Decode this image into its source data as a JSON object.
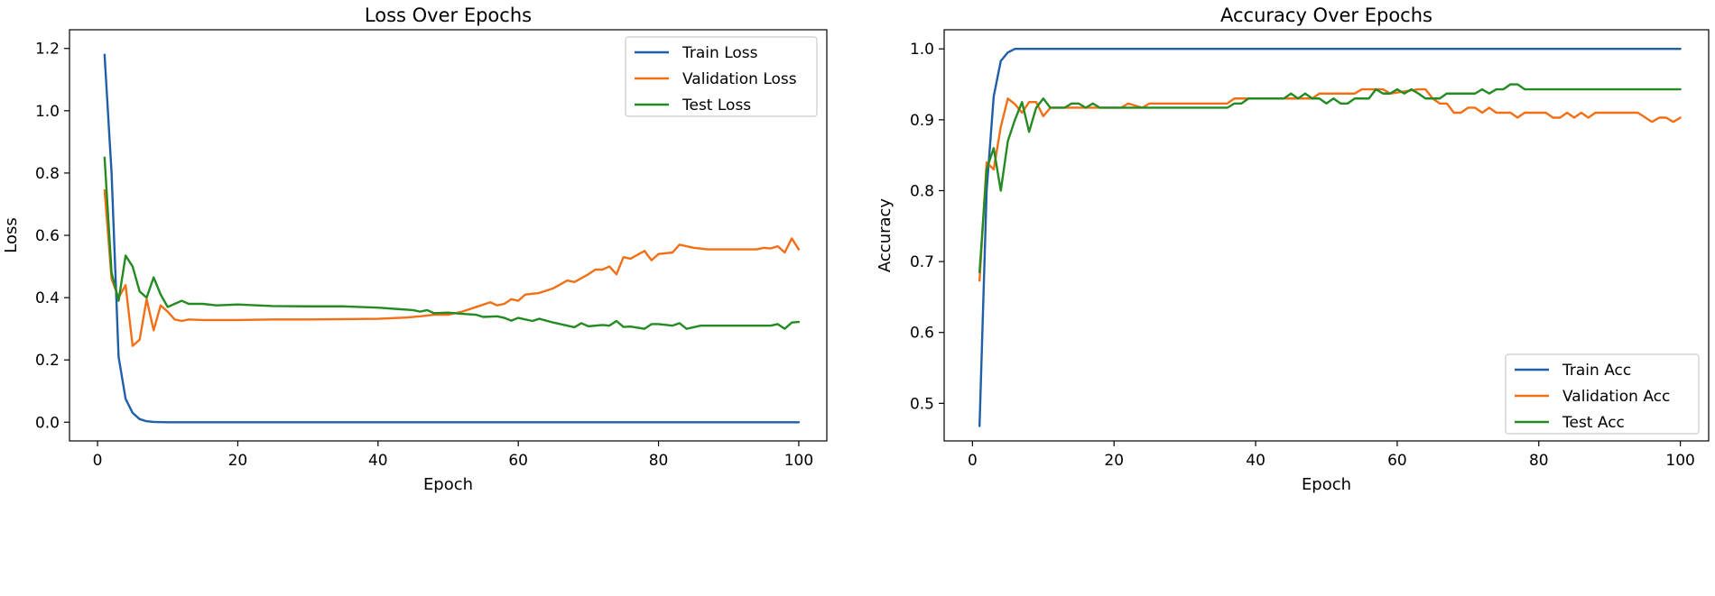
{
  "chart_data": [
    {
      "type": "line",
      "title": "Loss Over Epochs",
      "xlabel": "Epoch",
      "ylabel": "Loss",
      "xlim": [
        -4,
        104
      ],
      "ylim": [
        -0.06,
        1.26
      ],
      "xticks": [
        0,
        20,
        40,
        60,
        80,
        100
      ],
      "xtick_labels": [
        "0",
        "20",
        "40",
        "60",
        "80",
        "100"
      ],
      "yticks": [
        0.0,
        0.2,
        0.4,
        0.6,
        0.8,
        1.0,
        1.2
      ],
      "ytick_labels": [
        "0.0",
        "0.2",
        "0.4",
        "0.6",
        "0.8",
        "1.0",
        "1.2"
      ],
      "grid": false,
      "legend_position": "top-right",
      "series": [
        {
          "name": "Train Loss",
          "color": "#1f5ea8",
          "points": [
            [
              1,
              1.18
            ],
            [
              2,
              0.8
            ],
            [
              3,
              0.21
            ],
            [
              4,
              0.075
            ],
            [
              5,
              0.03
            ],
            [
              6,
              0.01
            ],
            [
              7,
              0.003
            ],
            [
              8,
              0.001
            ],
            [
              10,
              0.0
            ],
            [
              20,
              0.0
            ],
            [
              40,
              0.0
            ],
            [
              60,
              0.0
            ],
            [
              80,
              0.0
            ],
            [
              100,
              0.0
            ]
          ]
        },
        {
          "name": "Validation Loss",
          "color": "#f36f16",
          "points": [
            [
              1,
              0.745
            ],
            [
              2,
              0.46
            ],
            [
              3,
              0.4
            ],
            [
              4,
              0.44
            ],
            [
              5,
              0.245
            ],
            [
              6,
              0.265
            ],
            [
              7,
              0.395
            ],
            [
              8,
              0.295
            ],
            [
              9,
              0.375
            ],
            [
              10,
              0.355
            ],
            [
              11,
              0.33
            ],
            [
              12,
              0.325
            ],
            [
              13,
              0.33
            ],
            [
              15,
              0.328
            ],
            [
              20,
              0.328
            ],
            [
              25,
              0.33
            ],
            [
              30,
              0.33
            ],
            [
              40,
              0.332
            ],
            [
              44,
              0.336
            ],
            [
              46,
              0.34
            ],
            [
              48,
              0.345
            ],
            [
              50,
              0.345
            ],
            [
              52,
              0.355
            ],
            [
              54,
              0.37
            ],
            [
              56,
              0.385
            ],
            [
              57,
              0.375
            ],
            [
              58,
              0.38
            ],
            [
              59,
              0.395
            ],
            [
              60,
              0.39
            ],
            [
              61,
              0.41
            ],
            [
              63,
              0.415
            ],
            [
              65,
              0.43
            ],
            [
              67,
              0.455
            ],
            [
              68,
              0.45
            ],
            [
              70,
              0.475
            ],
            [
              71,
              0.49
            ],
            [
              72,
              0.49
            ],
            [
              73,
              0.5
            ],
            [
              74,
              0.475
            ],
            [
              75,
              0.53
            ],
            [
              76,
              0.525
            ],
            [
              78,
              0.55
            ],
            [
              79,
              0.52
            ],
            [
              80,
              0.54
            ],
            [
              82,
              0.545
            ],
            [
              83,
              0.57
            ],
            [
              85,
              0.56
            ],
            [
              87,
              0.555
            ],
            [
              88,
              0.555
            ],
            [
              90,
              0.555
            ],
            [
              94,
              0.555
            ],
            [
              95,
              0.56
            ],
            [
              96,
              0.558
            ],
            [
              97,
              0.565
            ],
            [
              98,
              0.545
            ],
            [
              99,
              0.59
            ],
            [
              100,
              0.555
            ]
          ]
        },
        {
          "name": "Test Loss",
          "color": "#238b22",
          "points": [
            [
              1,
              0.85
            ],
            [
              2,
              0.48
            ],
            [
              3,
              0.39
            ],
            [
              4,
              0.535
            ],
            [
              5,
              0.5
            ],
            [
              6,
              0.42
            ],
            [
              7,
              0.4
            ],
            [
              8,
              0.465
            ],
            [
              9,
              0.41
            ],
            [
              10,
              0.37
            ],
            [
              11,
              0.38
            ],
            [
              12,
              0.39
            ],
            [
              13,
              0.38
            ],
            [
              15,
              0.38
            ],
            [
              17,
              0.375
            ],
            [
              20,
              0.378
            ],
            [
              25,
              0.373
            ],
            [
              30,
              0.372
            ],
            [
              35,
              0.372
            ],
            [
              40,
              0.368
            ],
            [
              43,
              0.363
            ],
            [
              45,
              0.36
            ],
            [
              46,
              0.355
            ],
            [
              47,
              0.36
            ],
            [
              48,
              0.35
            ],
            [
              50,
              0.352
            ],
            [
              52,
              0.348
            ],
            [
              54,
              0.345
            ],
            [
              55,
              0.338
            ],
            [
              57,
              0.34
            ],
            [
              58,
              0.335
            ],
            [
              59,
              0.326
            ],
            [
              60,
              0.335
            ],
            [
              62,
              0.325
            ],
            [
              63,
              0.332
            ],
            [
              65,
              0.32
            ],
            [
              67,
              0.31
            ],
            [
              68,
              0.305
            ],
            [
              69,
              0.318
            ],
            [
              70,
              0.308
            ],
            [
              72,
              0.312
            ],
            [
              73,
              0.31
            ],
            [
              74,
              0.325
            ],
            [
              75,
              0.306
            ],
            [
              76,
              0.307
            ],
            [
              78,
              0.3
            ],
            [
              79,
              0.315
            ],
            [
              80,
              0.315
            ],
            [
              82,
              0.31
            ],
            [
              83,
              0.318
            ],
            [
              84,
              0.3
            ],
            [
              85,
              0.305
            ],
            [
              86,
              0.31
            ],
            [
              90,
              0.31
            ],
            [
              94,
              0.31
            ],
            [
              96,
              0.31
            ],
            [
              97,
              0.315
            ],
            [
              98,
              0.3
            ],
            [
              99,
              0.32
            ],
            [
              100,
              0.322
            ]
          ]
        }
      ]
    },
    {
      "type": "line",
      "title": "Accuracy Over Epochs",
      "xlabel": "Epoch",
      "ylabel": "Accuracy",
      "xlim": [
        -4,
        104
      ],
      "ylim": [
        0.447,
        1.027
      ],
      "xticks": [
        0,
        20,
        40,
        60,
        80,
        100
      ],
      "xtick_labels": [
        "0",
        "20",
        "40",
        "60",
        "80",
        "100"
      ],
      "yticks": [
        0.5,
        0.6,
        0.7,
        0.8,
        0.9,
        1.0
      ],
      "ytick_labels": [
        "0.5",
        "0.6",
        "0.7",
        "0.8",
        "0.9",
        "1.0"
      ],
      "grid": false,
      "legend_position": "bottom-right",
      "series": [
        {
          "name": "Train Acc",
          "color": "#1f5ea8",
          "points": [
            [
              1,
              0.468
            ],
            [
              2,
              0.8
            ],
            [
              3,
              0.933
            ],
            [
              4,
              0.983
            ],
            [
              5,
              0.995
            ],
            [
              6,
              1.0
            ],
            [
              10,
              1.0
            ],
            [
              20,
              1.0
            ],
            [
              40,
              1.0
            ],
            [
              60,
              1.0
            ],
            [
              80,
              1.0
            ],
            [
              100,
              1.0
            ]
          ]
        },
        {
          "name": "Validation Acc",
          "color": "#f36f16",
          "points": [
            [
              1,
              0.673
            ],
            [
              2,
              0.84
            ],
            [
              3,
              0.83
            ],
            [
              4,
              0.89
            ],
            [
              5,
              0.93
            ],
            [
              6,
              0.922
            ],
            [
              7,
              0.91
            ],
            [
              8,
              0.925
            ],
            [
              9,
              0.925
            ],
            [
              10,
              0.905
            ],
            [
              11,
              0.917
            ],
            [
              14,
              0.917
            ],
            [
              17,
              0.917
            ],
            [
              21,
              0.917
            ],
            [
              22,
              0.923
            ],
            [
              24,
              0.917
            ],
            [
              25,
              0.923
            ],
            [
              30,
              0.923
            ],
            [
              36,
              0.923
            ],
            [
              37,
              0.93
            ],
            [
              40,
              0.93
            ],
            [
              48,
              0.93
            ],
            [
              49,
              0.937
            ],
            [
              52,
              0.937
            ],
            [
              54,
              0.937
            ],
            [
              55,
              0.943
            ],
            [
              58,
              0.943
            ],
            [
              59,
              0.937
            ],
            [
              63,
              0.943
            ],
            [
              64,
              0.943
            ],
            [
              65,
              0.93
            ],
            [
              66,
              0.923
            ],
            [
              67,
              0.923
            ],
            [
              68,
              0.91
            ],
            [
              69,
              0.91
            ],
            [
              70,
              0.917
            ],
            [
              71,
              0.917
            ],
            [
              72,
              0.91
            ],
            [
              73,
              0.917
            ],
            [
              74,
              0.91
            ],
            [
              75,
              0.91
            ],
            [
              76,
              0.91
            ],
            [
              77,
              0.903
            ],
            [
              78,
              0.91
            ],
            [
              81,
              0.91
            ],
            [
              82,
              0.903
            ],
            [
              83,
              0.903
            ],
            [
              84,
              0.91
            ],
            [
              85,
              0.903
            ],
            [
              86,
              0.91
            ],
            [
              87,
              0.903
            ],
            [
              88,
              0.91
            ],
            [
              90,
              0.91
            ],
            [
              94,
              0.91
            ],
            [
              96,
              0.897
            ],
            [
              97,
              0.903
            ],
            [
              98,
              0.903
            ],
            [
              99,
              0.897
            ],
            [
              100,
              0.903
            ]
          ]
        },
        {
          "name": "Test Acc",
          "color": "#238b22",
          "points": [
            [
              1,
              0.685
            ],
            [
              2,
              0.83
            ],
            [
              3,
              0.86
            ],
            [
              4,
              0.8
            ],
            [
              5,
              0.87
            ],
            [
              6,
              0.9
            ],
            [
              7,
              0.925
            ],
            [
              8,
              0.883
            ],
            [
              9,
              0.917
            ],
            [
              10,
              0.93
            ],
            [
              11,
              0.917
            ],
            [
              13,
              0.917
            ],
            [
              14,
              0.923
            ],
            [
              15,
              0.923
            ],
            [
              16,
              0.917
            ],
            [
              17,
              0.923
            ],
            [
              18,
              0.917
            ],
            [
              20,
              0.917
            ],
            [
              30,
              0.917
            ],
            [
              36,
              0.917
            ],
            [
              37,
              0.923
            ],
            [
              38,
              0.923
            ],
            [
              39,
              0.93
            ],
            [
              44,
              0.93
            ],
            [
              45,
              0.937
            ],
            [
              46,
              0.93
            ],
            [
              47,
              0.937
            ],
            [
              48,
              0.93
            ],
            [
              49,
              0.93
            ],
            [
              50,
              0.923
            ],
            [
              51,
              0.93
            ],
            [
              52,
              0.923
            ],
            [
              53,
              0.923
            ],
            [
              54,
              0.93
            ],
            [
              56,
              0.93
            ],
            [
              57,
              0.943
            ],
            [
              58,
              0.937
            ],
            [
              59,
              0.937
            ],
            [
              60,
              0.943
            ],
            [
              61,
              0.937
            ],
            [
              62,
              0.943
            ],
            [
              63,
              0.937
            ],
            [
              64,
              0.93
            ],
            [
              66,
              0.93
            ],
            [
              67,
              0.937
            ],
            [
              71,
              0.937
            ],
            [
              72,
              0.943
            ],
            [
              73,
              0.937
            ],
            [
              74,
              0.943
            ],
            [
              75,
              0.943
            ],
            [
              76,
              0.95
            ],
            [
              77,
              0.95
            ],
            [
              78,
              0.943
            ],
            [
              80,
              0.943
            ],
            [
              90,
              0.943
            ],
            [
              100,
              0.943
            ]
          ]
        }
      ]
    }
  ]
}
